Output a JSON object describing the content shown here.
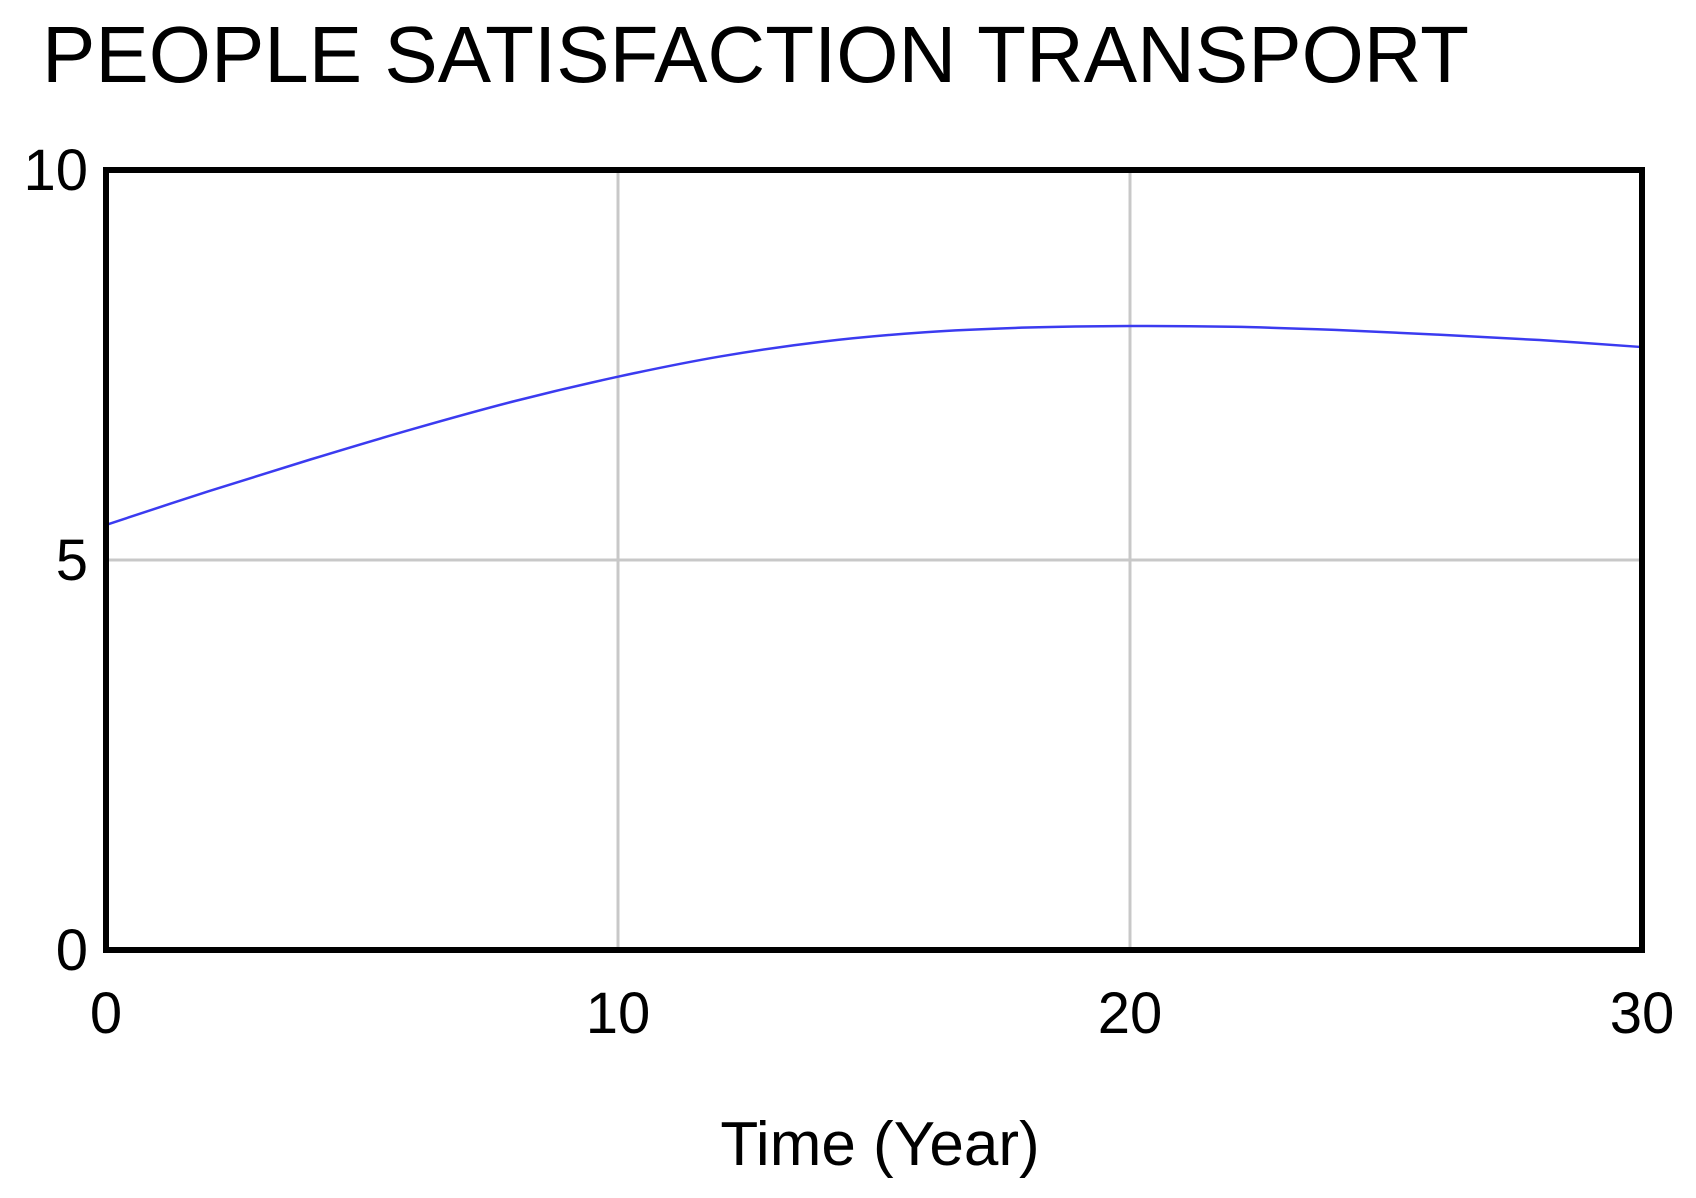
{
  "chart_data": {
    "type": "line",
    "title": "PEOPLE SATISFACTION TRANSPORT",
    "xlabel": "Time (Year)",
    "ylabel": "",
    "xlim": [
      0,
      30
    ],
    "ylim": [
      0,
      10
    ],
    "x_ticks": [
      0,
      10,
      20,
      30
    ],
    "y_ticks": [
      0,
      5,
      10
    ],
    "x_tick_labels": [
      "0",
      "10",
      "20",
      "30"
    ],
    "y_tick_labels": [
      "0",
      "5",
      "10"
    ],
    "grid": true,
    "line_color": "#3b3bf0",
    "grid_color": "#c8c8c8",
    "series": [
      {
        "x": [
          0,
          2,
          4,
          6,
          8,
          10,
          12,
          14,
          16,
          18,
          20,
          22,
          24,
          26,
          28,
          30
        ],
        "values": [
          5.45,
          5.88,
          6.29,
          6.68,
          7.04,
          7.35,
          7.61,
          7.8,
          7.92,
          7.98,
          8.0,
          7.99,
          7.95,
          7.89,
          7.82,
          7.73
        ]
      }
    ]
  }
}
